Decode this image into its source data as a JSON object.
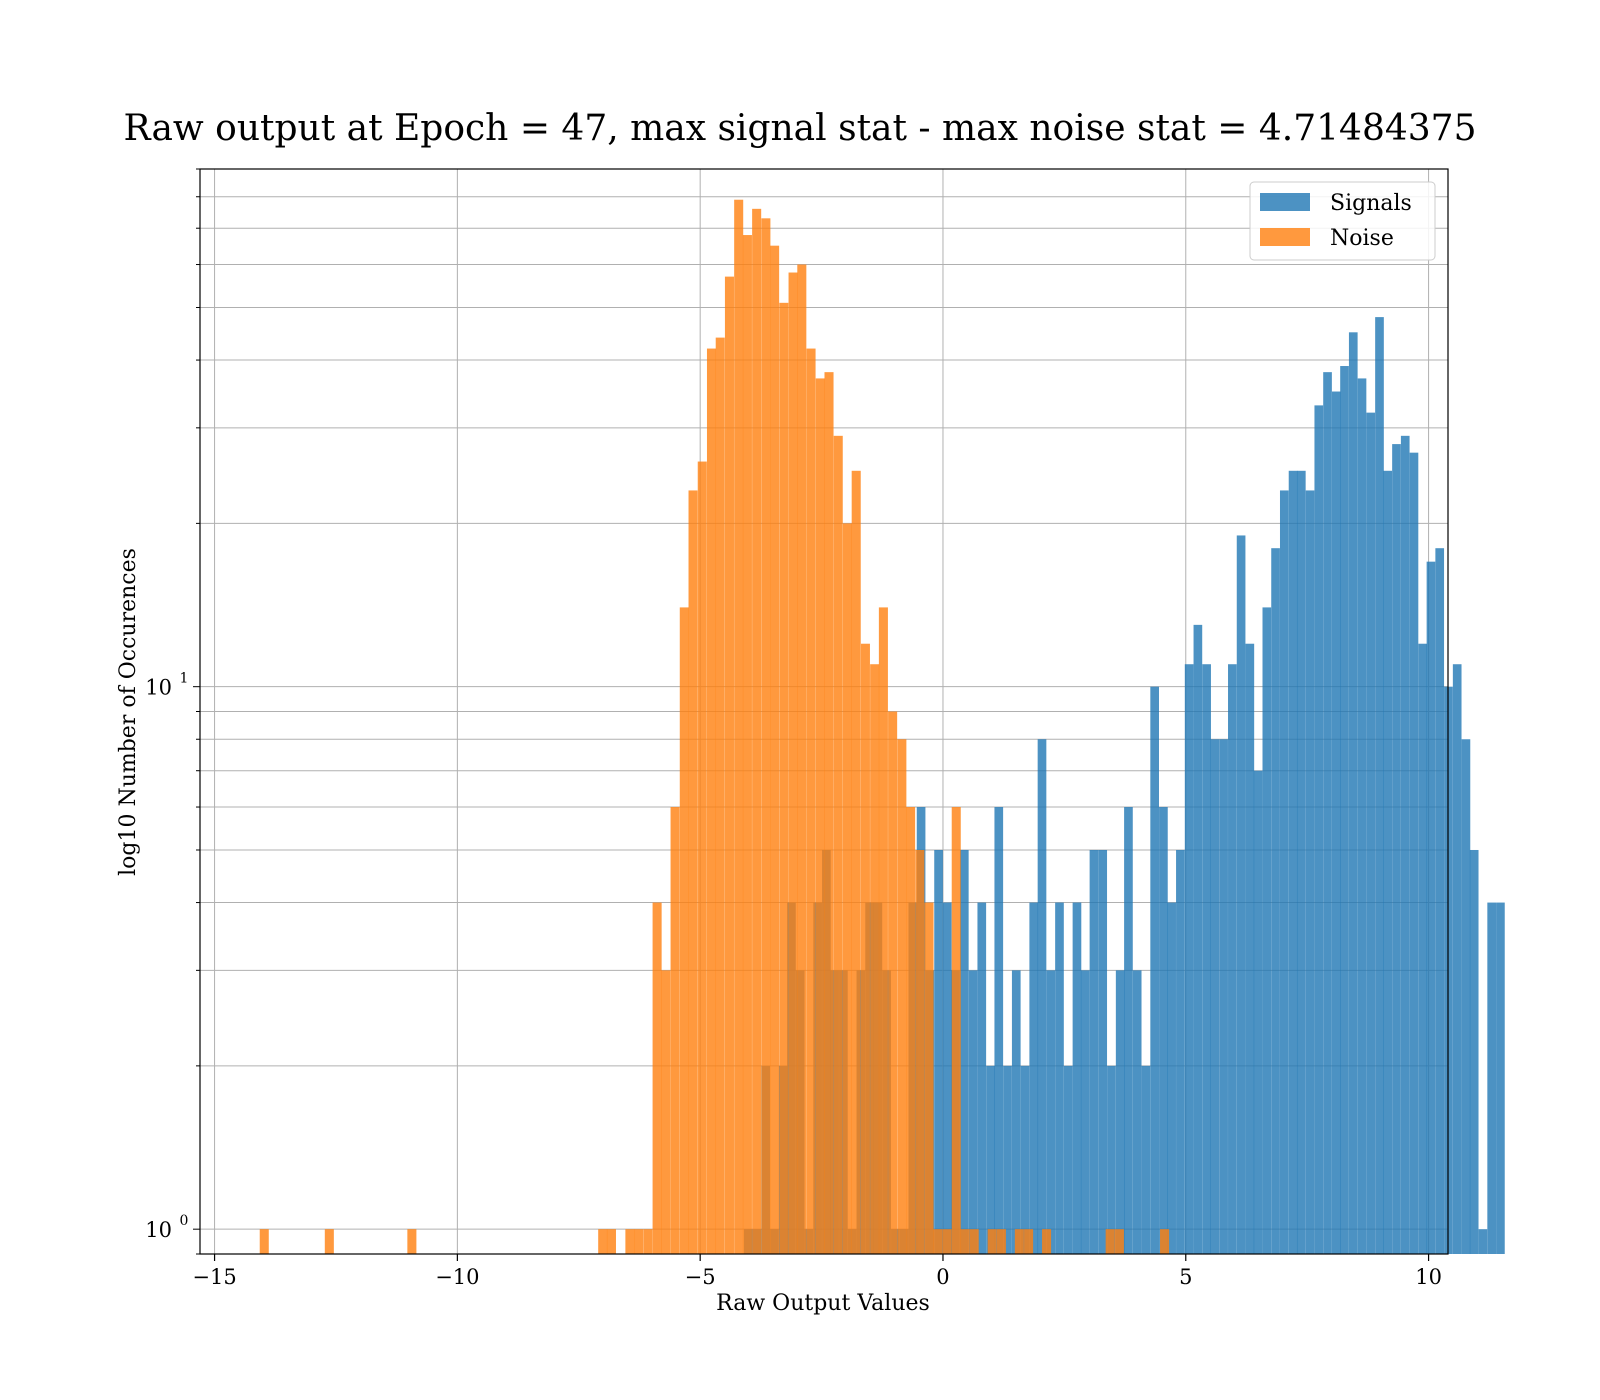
{
  "chart_data": {
    "type": "bar",
    "title": "Raw output at Epoch = 47, max signal stat - max noise stat = 4.71484375",
    "xlabel": "Raw Output Values",
    "ylabel": "log10 Number of Occurences",
    "xlim": [
      -15.3,
      10.4
    ],
    "ylim": [
      0.9,
      90
    ],
    "yscale": "log",
    "xticks": [
      -15,
      -10,
      -5,
      0,
      5,
      10
    ],
    "xtick_labels": [
      "−15",
      "−10",
      "−5",
      "0",
      "5",
      "10"
    ],
    "yticks": [
      {
        "value": 1,
        "base": "10",
        "exp": "0"
      },
      {
        "value": 10,
        "base": "10",
        "exp": "1"
      }
    ],
    "grid": true,
    "legend_position": "top-right",
    "series": [
      {
        "name": "Signals",
        "color": "#1f77b4",
        "opacity": 0.8,
        "bin_width": 0.1785,
        "values": [
          {
            "x": -4.1,
            "y": 1
          },
          {
            "x": -3.92,
            "y": 1
          },
          {
            "x": -3.74,
            "y": 2
          },
          {
            "x": -3.56,
            "y": 1
          },
          {
            "x": -3.38,
            "y": 2
          },
          {
            "x": -3.21,
            "y": 4
          },
          {
            "x": -3.03,
            "y": 3
          },
          {
            "x": -2.85,
            "y": 1
          },
          {
            "x": -2.67,
            "y": 4
          },
          {
            "x": -2.49,
            "y": 5
          },
          {
            "x": -2.32,
            "y": 3
          },
          {
            "x": -2.14,
            "y": 3
          },
          {
            "x": -1.96,
            "y": 1
          },
          {
            "x": -1.78,
            "y": 3
          },
          {
            "x": -1.6,
            "y": 4
          },
          {
            "x": -1.43,
            "y": 4
          },
          {
            "x": -1.25,
            "y": 3
          },
          {
            "x": -1.07,
            "y": 1
          },
          {
            "x": -0.89,
            "y": 1
          },
          {
            "x": -0.71,
            "y": 4
          },
          {
            "x": -0.54,
            "y": 6
          },
          {
            "x": -0.36,
            "y": 3
          },
          {
            "x": -0.18,
            "y": 5
          },
          {
            "x": 0.0,
            "y": 4
          },
          {
            "x": 0.17,
            "y": 3
          },
          {
            "x": 0.35,
            "y": 5
          },
          {
            "x": 0.53,
            "y": 3
          },
          {
            "x": 0.71,
            "y": 4
          },
          {
            "x": 0.89,
            "y": 2
          },
          {
            "x": 1.06,
            "y": 6
          },
          {
            "x": 1.24,
            "y": 2
          },
          {
            "x": 1.42,
            "y": 3
          },
          {
            "x": 1.6,
            "y": 2
          },
          {
            "x": 1.78,
            "y": 4
          },
          {
            "x": 1.95,
            "y": 8
          },
          {
            "x": 2.13,
            "y": 3
          },
          {
            "x": 2.31,
            "y": 4
          },
          {
            "x": 2.49,
            "y": 2
          },
          {
            "x": 2.67,
            "y": 4
          },
          {
            "x": 2.84,
            "y": 3
          },
          {
            "x": 3.02,
            "y": 5
          },
          {
            "x": 3.2,
            "y": 5
          },
          {
            "x": 3.38,
            "y": 2
          },
          {
            "x": 3.56,
            "y": 3
          },
          {
            "x": 3.73,
            "y": 6
          },
          {
            "x": 3.91,
            "y": 3
          },
          {
            "x": 4.09,
            "y": 2
          },
          {
            "x": 4.27,
            "y": 10
          },
          {
            "x": 4.45,
            "y": 6
          },
          {
            "x": 4.62,
            "y": 4
          },
          {
            "x": 4.8,
            "y": 5
          },
          {
            "x": 4.98,
            "y": 11
          },
          {
            "x": 5.16,
            "y": 13
          },
          {
            "x": 5.34,
            "y": 11
          },
          {
            "x": 5.51,
            "y": 8
          },
          {
            "x": 5.69,
            "y": 8
          },
          {
            "x": 5.87,
            "y": 11
          },
          {
            "x": 6.05,
            "y": 19
          },
          {
            "x": 6.23,
            "y": 12
          },
          {
            "x": 6.4,
            "y": 7
          },
          {
            "x": 6.58,
            "y": 14
          },
          {
            "x": 6.76,
            "y": 18
          },
          {
            "x": 6.94,
            "y": 23
          },
          {
            "x": 7.12,
            "y": 25
          },
          {
            "x": 7.29,
            "y": 25
          },
          {
            "x": 7.47,
            "y": 23
          },
          {
            "x": 7.65,
            "y": 33
          },
          {
            "x": 7.83,
            "y": 38
          },
          {
            "x": 8.01,
            "y": 35
          },
          {
            "x": 8.18,
            "y": 39
          },
          {
            "x": 8.36,
            "y": 45
          },
          {
            "x": 8.54,
            "y": 37
          },
          {
            "x": 8.72,
            "y": 32
          },
          {
            "x": 8.9,
            "y": 48
          },
          {
            "x": 9.07,
            "y": 25
          },
          {
            "x": 9.25,
            "y": 28
          },
          {
            "x": 9.43,
            "y": 29
          },
          {
            "x": 9.61,
            "y": 27
          },
          {
            "x": 9.79,
            "y": 12
          },
          {
            "x": 9.96,
            "y": 17
          },
          {
            "x": 10.14,
            "y": 18
          },
          {
            "x": 10.32,
            "y": 10
          },
          {
            "x": 10.5,
            "y": 11
          },
          {
            "x": 10.68,
            "y": 8
          },
          {
            "x": 10.85,
            "y": 5
          },
          {
            "x": 11.03,
            "y": 1
          },
          {
            "x": 11.21,
            "y": 4
          },
          {
            "x": 11.39,
            "y": 4
          }
        ]
      },
      {
        "name": "Noise",
        "color": "#ff7f0e",
        "opacity": 0.8,
        "bin_width": 0.1863,
        "values": [
          {
            "x": -14.07,
            "y": 1
          },
          {
            "x": -12.73,
            "y": 1
          },
          {
            "x": -11.03,
            "y": 1
          },
          {
            "x": -7.1,
            "y": 1
          },
          {
            "x": -6.92,
            "y": 1
          },
          {
            "x": -6.54,
            "y": 1
          },
          {
            "x": -6.36,
            "y": 1
          },
          {
            "x": -6.17,
            "y": 1
          },
          {
            "x": -5.98,
            "y": 4
          },
          {
            "x": -5.8,
            "y": 3
          },
          {
            "x": -5.61,
            "y": 6
          },
          {
            "x": -5.42,
            "y": 14
          },
          {
            "x": -5.24,
            "y": 23
          },
          {
            "x": -5.05,
            "y": 26
          },
          {
            "x": -4.86,
            "y": 42
          },
          {
            "x": -4.68,
            "y": 44
          },
          {
            "x": -4.49,
            "y": 57
          },
          {
            "x": -4.3,
            "y": 79
          },
          {
            "x": -4.12,
            "y": 68
          },
          {
            "x": -3.93,
            "y": 76
          },
          {
            "x": -3.74,
            "y": 73
          },
          {
            "x": -3.56,
            "y": 65
          },
          {
            "x": -3.37,
            "y": 51
          },
          {
            "x": -3.18,
            "y": 58
          },
          {
            "x": -3.0,
            "y": 60
          },
          {
            "x": -2.81,
            "y": 42
          },
          {
            "x": -2.62,
            "y": 37
          },
          {
            "x": -2.44,
            "y": 38
          },
          {
            "x": -2.25,
            "y": 29
          },
          {
            "x": -2.06,
            "y": 20
          },
          {
            "x": -1.88,
            "y": 25
          },
          {
            "x": -1.69,
            "y": 12
          },
          {
            "x": -1.5,
            "y": 11
          },
          {
            "x": -1.32,
            "y": 14
          },
          {
            "x": -1.13,
            "y": 9
          },
          {
            "x": -0.94,
            "y": 8
          },
          {
            "x": -0.76,
            "y": 6
          },
          {
            "x": -0.57,
            "y": 5
          },
          {
            "x": -0.38,
            "y": 4
          },
          {
            "x": -0.2,
            "y": 1
          },
          {
            "x": -0.01,
            "y": 1
          },
          {
            "x": 0.18,
            "y": 6
          },
          {
            "x": 0.36,
            "y": 1
          },
          {
            "x": 0.55,
            "y": 1
          },
          {
            "x": 0.92,
            "y": 1
          },
          {
            "x": 1.11,
            "y": 1
          },
          {
            "x": 1.48,
            "y": 1
          },
          {
            "x": 1.67,
            "y": 1
          },
          {
            "x": 2.04,
            "y": 1
          },
          {
            "x": 3.35,
            "y": 1
          },
          {
            "x": 3.54,
            "y": 1
          },
          {
            "x": 4.47,
            "y": 1
          }
        ]
      }
    ]
  }
}
